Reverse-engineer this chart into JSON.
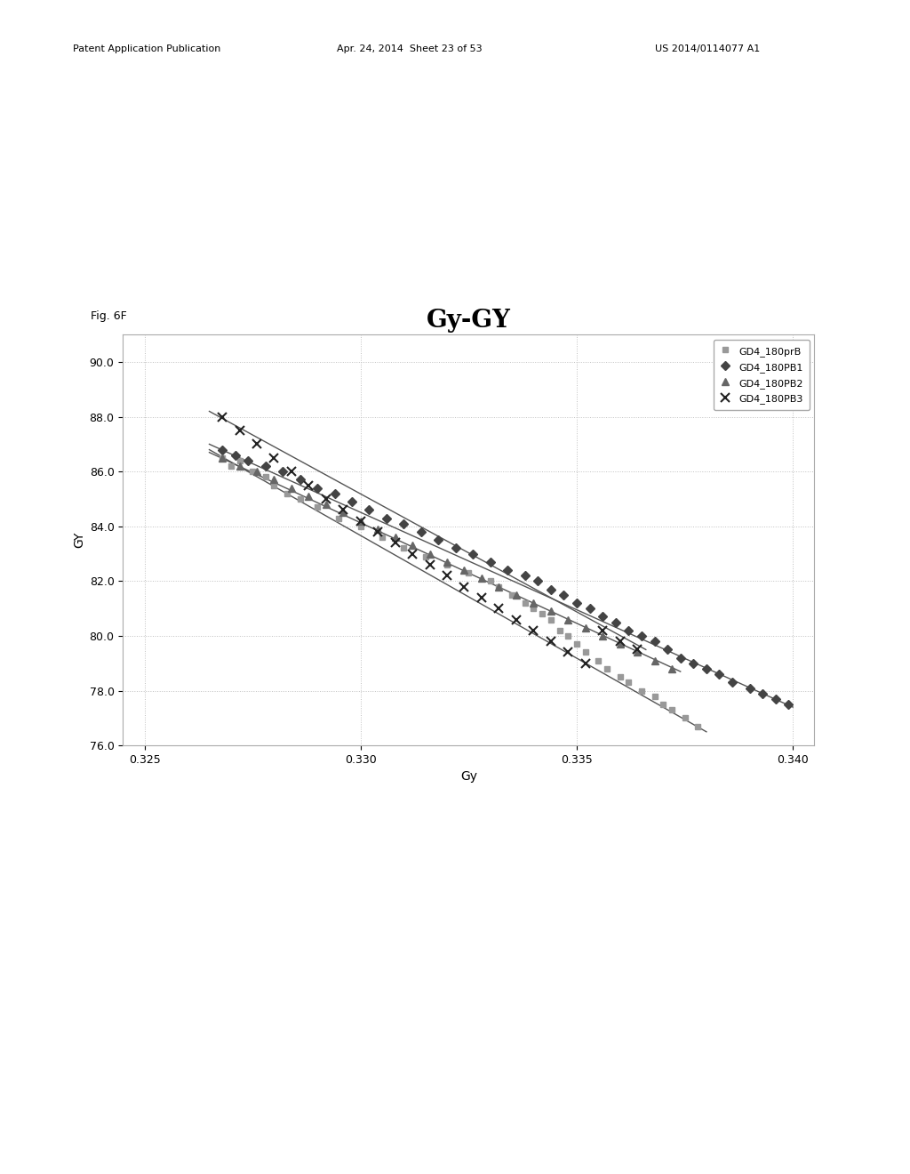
{
  "title": "Gy-GY",
  "xlabel": "Gy",
  "ylabel": "GY",
  "fig_label": "Fig. 6F",
  "xlim": [
    0.3245,
    0.3405
  ],
  "ylim": [
    76.0,
    91.0
  ],
  "xticks": [
    0.325,
    0.33,
    0.335,
    0.34
  ],
  "yticks": [
    76.0,
    78.0,
    80.0,
    82.0,
    84.0,
    86.0,
    88.0,
    90.0
  ],
  "series": [
    {
      "label": "GD4_180prB",
      "color": "#999999",
      "marker": "s",
      "markersize": 5,
      "data_x": [
        0.3268,
        0.327,
        0.3272,
        0.3275,
        0.3278,
        0.328,
        0.3283,
        0.3286,
        0.329,
        0.3295,
        0.33,
        0.3305,
        0.331,
        0.3315,
        0.332,
        0.3325,
        0.333,
        0.3332,
        0.3335,
        0.3338,
        0.334,
        0.3342,
        0.3344,
        0.3346,
        0.3348,
        0.335,
        0.3352,
        0.3355,
        0.3357,
        0.336,
        0.3362,
        0.3365,
        0.3368,
        0.337,
        0.3372,
        0.3375,
        0.3378
      ],
      "data_y": [
        86.5,
        86.2,
        86.4,
        86.0,
        85.8,
        85.5,
        85.2,
        85.0,
        84.7,
        84.3,
        84.0,
        83.6,
        83.2,
        82.9,
        82.6,
        82.3,
        82.0,
        81.8,
        81.5,
        81.2,
        81.0,
        80.8,
        80.6,
        80.2,
        80.0,
        79.7,
        79.4,
        79.1,
        78.8,
        78.5,
        78.3,
        78.0,
        77.8,
        77.5,
        77.3,
        77.0,
        76.7
      ],
      "trend_x": [
        0.3265,
        0.338
      ],
      "trend_y": [
        86.8,
        76.5
      ]
    },
    {
      "label": "GD4_180PB1",
      "color": "#444444",
      "marker": "D",
      "markersize": 5,
      "data_x": [
        0.3268,
        0.3271,
        0.3274,
        0.3278,
        0.3282,
        0.3286,
        0.329,
        0.3294,
        0.3298,
        0.3302,
        0.3306,
        0.331,
        0.3314,
        0.3318,
        0.3322,
        0.3326,
        0.333,
        0.3334,
        0.3338,
        0.3341,
        0.3344,
        0.3347,
        0.335,
        0.3353,
        0.3356,
        0.3359,
        0.3362,
        0.3365,
        0.3368,
        0.3371,
        0.3374,
        0.3377,
        0.338,
        0.3383,
        0.3386,
        0.339,
        0.3393,
        0.3396,
        0.3399
      ],
      "data_y": [
        86.8,
        86.6,
        86.4,
        86.2,
        86.0,
        85.7,
        85.4,
        85.2,
        84.9,
        84.6,
        84.3,
        84.1,
        83.8,
        83.5,
        83.2,
        83.0,
        82.7,
        82.4,
        82.2,
        82.0,
        81.7,
        81.5,
        81.2,
        81.0,
        80.7,
        80.5,
        80.2,
        80.0,
        79.8,
        79.5,
        79.2,
        79.0,
        78.8,
        78.6,
        78.3,
        78.1,
        77.9,
        77.7,
        77.5
      ],
      "trend_x": [
        0.3265,
        0.34
      ],
      "trend_y": [
        87.0,
        77.4
      ]
    },
    {
      "label": "GD4_180PB2",
      "color": "#666666",
      "marker": "^",
      "markersize": 6,
      "data_x": [
        0.3268,
        0.3272,
        0.3276,
        0.328,
        0.3284,
        0.3288,
        0.3292,
        0.3296,
        0.33,
        0.3304,
        0.3308,
        0.3312,
        0.3316,
        0.332,
        0.3324,
        0.3328,
        0.3332,
        0.3336,
        0.334,
        0.3344,
        0.3348,
        0.3352,
        0.3356,
        0.336,
        0.3364,
        0.3368,
        0.3372
      ],
      "data_y": [
        86.5,
        86.2,
        86.0,
        85.7,
        85.4,
        85.1,
        84.8,
        84.5,
        84.2,
        83.9,
        83.6,
        83.3,
        83.0,
        82.7,
        82.4,
        82.1,
        81.8,
        81.5,
        81.2,
        80.9,
        80.6,
        80.3,
        80.0,
        79.7,
        79.4,
        79.1,
        78.8
      ],
      "trend_x": [
        0.3265,
        0.3374
      ],
      "trend_y": [
        86.7,
        78.7
      ]
    },
    {
      "label": "GD4_180PB3",
      "color": "#222222",
      "marker": "x",
      "markersize": 7,
      "data_x": [
        0.3268,
        0.3272,
        0.3276,
        0.328,
        0.3284,
        0.3288,
        0.3292,
        0.3296,
        0.33,
        0.3304,
        0.3308,
        0.3312,
        0.3316,
        0.332,
        0.3324,
        0.3328,
        0.3332,
        0.3336,
        0.334,
        0.3344,
        0.3348,
        0.3352,
        0.3356,
        0.336,
        0.3364
      ],
      "data_y": [
        88.0,
        87.5,
        87.0,
        86.5,
        86.0,
        85.5,
        85.0,
        84.6,
        84.2,
        83.8,
        83.4,
        83.0,
        82.6,
        82.2,
        81.8,
        81.4,
        81.0,
        80.6,
        80.2,
        79.8,
        79.4,
        79.0,
        80.2,
        79.8,
        79.5
      ],
      "trend_x": [
        0.3265,
        0.3366
      ],
      "trend_y": [
        88.2,
        79.5
      ]
    }
  ],
  "background_color": "#ffffff",
  "plot_bg_color": "#ffffff",
  "grid_color": "#c0c0c0",
  "title_fontsize": 20,
  "axis_label_fontsize": 10,
  "tick_fontsize": 9,
  "legend_fontsize": 8,
  "header_text": "Patent Application Publication",
  "header_date": "Apr. 24, 2014  Sheet 23 of 53",
  "header_patent": "US 2014/0114077 A1"
}
